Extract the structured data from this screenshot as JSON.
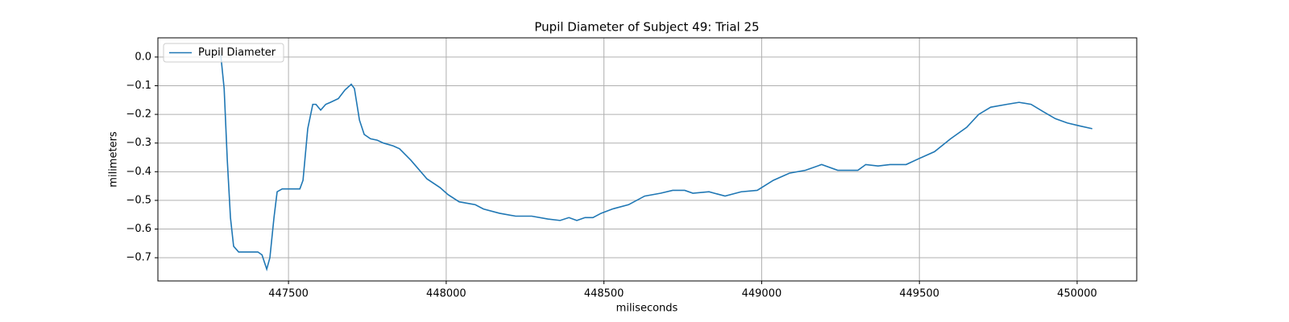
{
  "chart_data": {
    "type": "line",
    "title": "Pupil Diameter of Subject 49: Trial 25",
    "xlabel": "miliseconds",
    "ylabel": "milimeters",
    "x": [
      447285,
      447296,
      447306,
      447316,
      447326,
      447342,
      447403,
      447416,
      447431,
      447441,
      447454,
      447464,
      447480,
      447536,
      447546,
      447561,
      447577,
      447587,
      447602,
      447618,
      447633,
      447658,
      447679,
      447699,
      447709,
      447725,
      447740,
      447760,
      447781,
      447801,
      447832,
      447852,
      447888,
      447939,
      447980,
      448006,
      448041,
      448092,
      448118,
      448169,
      448220,
      448271,
      448322,
      448361,
      448389,
      448414,
      448440,
      448465,
      448491,
      448527,
      448578,
      448629,
      448680,
      448718,
      448756,
      448782,
      448833,
      448884,
      448935,
      448986,
      449037,
      449088,
      449139,
      449190,
      449241,
      449305,
      449330,
      449369,
      449407,
      449458,
      449497,
      449548,
      449599,
      449650,
      449688,
      449726,
      449777,
      449816,
      449854,
      449892,
      449931,
      449969,
      450007,
      450048
    ],
    "series": [
      {
        "name": "Pupil Diameter",
        "color": "#1f77b4",
        "values": [
          0.01,
          -0.11,
          -0.36,
          -0.56,
          -0.66,
          -0.68,
          -0.68,
          -0.69,
          -0.74,
          -0.7,
          -0.56,
          -0.47,
          -0.46,
          -0.46,
          -0.43,
          -0.25,
          -0.165,
          -0.165,
          -0.185,
          -0.165,
          -0.158,
          -0.145,
          -0.115,
          -0.095,
          -0.11,
          -0.22,
          -0.27,
          -0.285,
          -0.29,
          -0.3,
          -0.31,
          -0.32,
          -0.36,
          -0.425,
          -0.455,
          -0.48,
          -0.505,
          -0.515,
          -0.53,
          -0.545,
          -0.555,
          -0.555,
          -0.565,
          -0.57,
          -0.56,
          -0.57,
          -0.56,
          -0.56,
          -0.545,
          -0.53,
          -0.515,
          -0.485,
          -0.475,
          -0.465,
          -0.465,
          -0.475,
          -0.47,
          -0.485,
          -0.47,
          -0.465,
          -0.43,
          -0.405,
          -0.395,
          -0.375,
          -0.395,
          -0.395,
          -0.375,
          -0.38,
          -0.375,
          -0.375,
          -0.355,
          -0.33,
          -0.285,
          -0.245,
          -0.2,
          -0.175,
          -0.165,
          -0.158,
          -0.165,
          -0.19,
          -0.215,
          -0.23,
          -0.24,
          -0.25
        ]
      }
    ],
    "xlim": [
      447086,
      450189
    ],
    "xticks": [
      447500,
      448000,
      448500,
      449000,
      449500,
      450000
    ],
    "ylim": [
      -0.781,
      0.067
    ],
    "yticks": [
      {
        "value": -0.7,
        "label": "−0.7"
      },
      {
        "value": -0.6,
        "label": "−0.6"
      },
      {
        "value": -0.5,
        "label": "−0.5"
      },
      {
        "value": -0.4,
        "label": "−0.4"
      },
      {
        "value": -0.3,
        "label": "−0.3"
      },
      {
        "value": -0.2,
        "label": "−0.2"
      },
      {
        "value": -0.1,
        "label": "−0.1"
      },
      {
        "value": 0,
        "label": "0.0"
      }
    ],
    "grid": true,
    "legend": "upper left"
  }
}
